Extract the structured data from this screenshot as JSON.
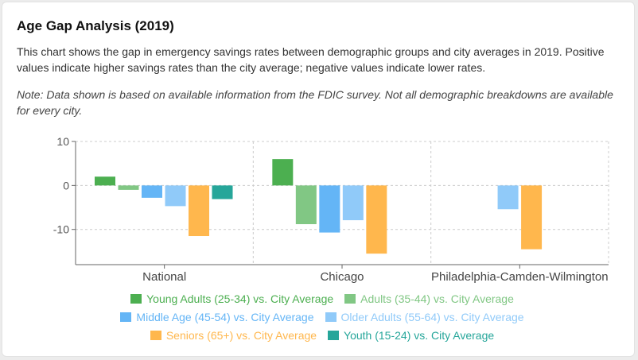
{
  "card": {
    "title": "Age Gap Analysis (2019)",
    "description": "This chart shows the gap in emergency savings rates between demographic groups and city averages in 2019. Positive values indicate higher savings rates than the city average; negative values indicate lower rates.",
    "note": "Note: Data shown is based on available information from the FDIC survey. Not all demographic breakdowns are available for every city."
  },
  "chart_data": {
    "type": "bar",
    "categories": [
      "National",
      "Chicago",
      "Philadelphia-Camden-Wilmington"
    ],
    "ylim": [
      -18,
      10
    ],
    "yticks": [
      10,
      0,
      -10
    ],
    "grid": true,
    "legend_position": "bottom",
    "series": [
      {
        "name": "Young Adults (25-34) vs. City Average",
        "color": "#4caf50",
        "values": [
          2,
          6,
          null
        ]
      },
      {
        "name": "Adults (35-44) vs. City Average",
        "color": "#81c784",
        "values": [
          -1,
          -8.8,
          null
        ]
      },
      {
        "name": "Middle Age (45-54) vs. City Average",
        "color": "#64b5f6",
        "values": [
          -2.8,
          -10.7,
          null
        ]
      },
      {
        "name": "Older Adults (55-64) vs. City Average",
        "color": "#90caf9",
        "values": [
          -4.7,
          -7.9,
          -5.4
        ]
      },
      {
        "name": "Seniors (65+) vs. City Average",
        "color": "#ffb74d",
        "values": [
          -11.5,
          -15.5,
          -14.5
        ]
      },
      {
        "name": "Youth (15-24) vs. City Average",
        "color": "#26a69a",
        "values": [
          -3.1,
          null,
          null
        ]
      }
    ]
  }
}
